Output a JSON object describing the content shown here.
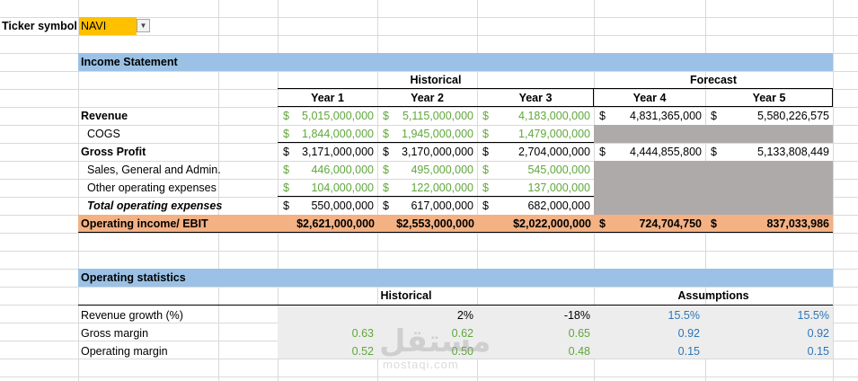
{
  "ticker": {
    "label": "Ticker symbol",
    "value": "NAVI"
  },
  "income_statement": {
    "title": "Income Statement",
    "group_historical": "Historical",
    "group_forecast": "Forecast",
    "years": [
      "Year 1",
      "Year 2",
      "Year 3",
      "Year 4",
      "Year 5"
    ],
    "rows": {
      "revenue": {
        "label": "Revenue",
        "cells": [
          [
            "$",
            "5,015,000,000"
          ],
          [
            "$",
            "5,115,000,000"
          ],
          [
            "$",
            "4,183,000,000"
          ],
          [
            "$",
            "4,831,365,000"
          ],
          [
            "$",
            "5,580,226,575"
          ]
        ]
      },
      "cogs": {
        "label": "COGS",
        "cells": [
          [
            "$",
            "1,844,000,000"
          ],
          [
            "$",
            "1,945,000,000"
          ],
          [
            "$",
            "1,479,000,000"
          ]
        ]
      },
      "gross_profit": {
        "label": "Gross Profit",
        "cells": [
          [
            "$",
            "3,171,000,000"
          ],
          [
            "$",
            "3,170,000,000"
          ],
          [
            "$",
            "2,704,000,000"
          ],
          [
            "$",
            "4,444,855,800"
          ],
          [
            "$",
            "5,133,808,449"
          ]
        ]
      },
      "sga": {
        "label": "Sales, General and Admin.",
        "cells": [
          [
            "$",
            "446,000,000"
          ],
          [
            "$",
            "495,000,000"
          ],
          [
            "$",
            "545,000,000"
          ]
        ]
      },
      "other_opex": {
        "label": "Other operating expenses",
        "cells": [
          [
            "$",
            "104,000,000"
          ],
          [
            "$",
            "122,000,000"
          ],
          [
            "$",
            "137,000,000"
          ]
        ]
      },
      "total_opex": {
        "label": "Total operating expenses",
        "cells": [
          [
            "$",
            "550,000,000"
          ],
          [
            "$",
            "617,000,000"
          ],
          [
            "$",
            "682,000,000"
          ]
        ]
      },
      "ebit": {
        "label": "Operating income/ EBIT",
        "cells": [
          "$2,621,000,000",
          "$2,553,000,000",
          "$2,022,000,000",
          [
            "$",
            "724,704,750"
          ],
          [
            "$",
            "837,033,986"
          ]
        ]
      }
    }
  },
  "operating_statistics": {
    "title": "Operating statistics",
    "group_historical": "Historical",
    "group_assumptions": "Assumptions",
    "rows": {
      "revenue_growth": {
        "label": "Revenue growth (%)",
        "values": [
          "",
          "2%",
          "-18%",
          "15.5%",
          "15.5%"
        ]
      },
      "gross_margin": {
        "label": "Gross margin",
        "values": [
          "0.63",
          "0.62",
          "0.65",
          "0.92",
          "0.92"
        ]
      },
      "operating_margin": {
        "label": "Operating margin",
        "values": [
          "0.52",
          "0.50",
          "0.48",
          "0.15",
          "0.15"
        ]
      }
    }
  },
  "watermark": {
    "arabic": "مستقل",
    "latin": "mostaqi.com"
  },
  "colors": {
    "header_blue": "#9bc2e6",
    "forecast_grey": "#aeaaaa",
    "ebit_orange": "#f4b183",
    "ticker_yellow": "#ffc000",
    "input_green": "#5fa83a",
    "assumption_blue": "#2e75b6"
  }
}
